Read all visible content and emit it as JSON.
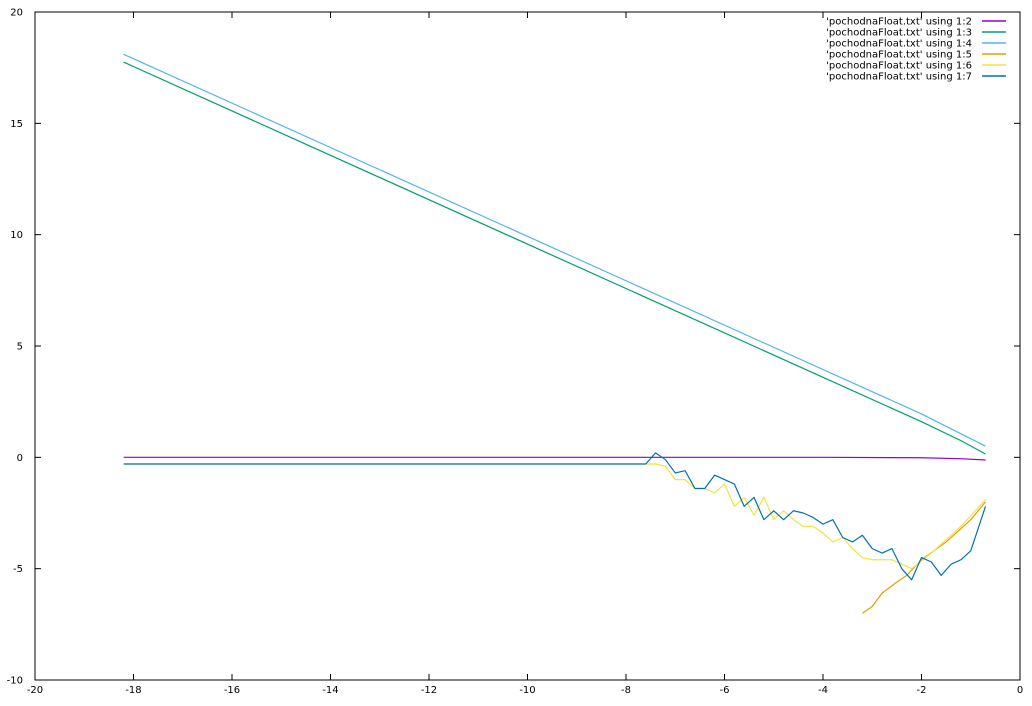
{
  "chart_data": {
    "type": "line",
    "title": "",
    "xlabel": "",
    "ylabel": "",
    "xlim": [
      -20,
      0
    ],
    "ylim": [
      -10,
      20
    ],
    "grid": false,
    "legend_position": "top-right",
    "x_ticks": [
      "-20",
      "-18",
      "-16",
      "-14",
      "-12",
      "-10",
      "-8",
      "-6",
      "-4",
      "-2",
      "0"
    ],
    "y_ticks": [
      "-10",
      "-5",
      "0",
      "5",
      "10",
      "15",
      "20"
    ],
    "series": [
      {
        "name": "'pochodnaFloat.txt' using 1:2",
        "color": "#9400d3",
        "points": [
          [
            -18.2,
            0.0
          ],
          [
            -10.0,
            0.0
          ],
          [
            -4.0,
            0.0
          ],
          [
            -2.0,
            -0.02
          ],
          [
            -1.2,
            -0.06
          ],
          [
            -0.7,
            -0.12
          ]
        ]
      },
      {
        "name": "'pochodnaFloat.txt' using 1:3",
        "color": "#009e73",
        "points": [
          [
            -18.2,
            17.75
          ],
          [
            -2.0,
            1.6
          ],
          [
            -1.2,
            0.75
          ],
          [
            -0.7,
            0.15
          ]
        ]
      },
      {
        "name": "'pochodnaFloat.txt' using 1:4",
        "color": "#56b4e9",
        "points": [
          [
            -18.2,
            18.1
          ],
          [
            -2.0,
            1.95
          ],
          [
            -0.7,
            0.5
          ]
        ]
      },
      {
        "name": "'pochodnaFloat.txt' using 1:5",
        "color": "#e69f00",
        "points": [
          [
            -3.2,
            -7.0
          ],
          [
            -3.0,
            -6.7
          ],
          [
            -2.8,
            -6.1
          ],
          [
            -2.5,
            -5.6
          ],
          [
            -2.3,
            -5.3
          ],
          [
            -2.0,
            -4.6
          ],
          [
            -1.5,
            -3.8
          ],
          [
            -1.0,
            -2.8
          ],
          [
            -0.7,
            -2.0
          ]
        ]
      },
      {
        "name": "'pochodnaFloat.txt' using 1:6",
        "color": "#f0e442",
        "points": [
          [
            -18.2,
            -0.3
          ],
          [
            -7.6,
            -0.3
          ],
          [
            -7.4,
            -0.3
          ],
          [
            -7.2,
            -0.4
          ],
          [
            -7.0,
            -1.0
          ],
          [
            -6.8,
            -1.0
          ],
          [
            -6.6,
            -1.4
          ],
          [
            -6.4,
            -1.4
          ],
          [
            -6.2,
            -1.6
          ],
          [
            -6.0,
            -1.2
          ],
          [
            -5.8,
            -2.2
          ],
          [
            -5.6,
            -1.8
          ],
          [
            -5.4,
            -2.6
          ],
          [
            -5.2,
            -1.8
          ],
          [
            -5.0,
            -2.8
          ],
          [
            -4.8,
            -2.4
          ],
          [
            -4.6,
            -2.8
          ],
          [
            -4.4,
            -3.1
          ],
          [
            -4.2,
            -3.1
          ],
          [
            -4.0,
            -3.4
          ],
          [
            -3.8,
            -3.8
          ],
          [
            -3.6,
            -3.6
          ],
          [
            -3.4,
            -4.1
          ],
          [
            -3.2,
            -4.5
          ],
          [
            -3.0,
            -4.6
          ],
          [
            -2.8,
            -4.6
          ],
          [
            -2.6,
            -4.6
          ],
          [
            -2.4,
            -4.8
          ],
          [
            -2.2,
            -5.0
          ],
          [
            -1.8,
            -4.3
          ],
          [
            -1.2,
            -3.1
          ],
          [
            -0.7,
            -1.9
          ]
        ]
      },
      {
        "name": "'pochodnaFloat.txt' using 1:7",
        "color": "#0072b2",
        "points": [
          [
            -18.2,
            -0.3
          ],
          [
            -7.6,
            -0.3
          ],
          [
            -7.4,
            0.2
          ],
          [
            -7.2,
            -0.1
          ],
          [
            -7.0,
            -0.7
          ],
          [
            -6.8,
            -0.6
          ],
          [
            -6.6,
            -1.4
          ],
          [
            -6.4,
            -1.4
          ],
          [
            -6.2,
            -0.8
          ],
          [
            -6.0,
            -1.0
          ],
          [
            -5.8,
            -1.2
          ],
          [
            -5.6,
            -2.2
          ],
          [
            -5.4,
            -1.8
          ],
          [
            -5.2,
            -2.8
          ],
          [
            -5.0,
            -2.4
          ],
          [
            -4.8,
            -2.8
          ],
          [
            -4.6,
            -2.4
          ],
          [
            -4.4,
            -2.5
          ],
          [
            -4.2,
            -2.7
          ],
          [
            -4.0,
            -3.0
          ],
          [
            -3.8,
            -2.8
          ],
          [
            -3.6,
            -3.6
          ],
          [
            -3.4,
            -3.8
          ],
          [
            -3.2,
            -3.5
          ],
          [
            -3.0,
            -4.1
          ],
          [
            -2.8,
            -4.3
          ],
          [
            -2.6,
            -4.1
          ],
          [
            -2.4,
            -5.0
          ],
          [
            -2.2,
            -5.5
          ],
          [
            -2.0,
            -4.5
          ],
          [
            -1.8,
            -4.7
          ],
          [
            -1.6,
            -5.3
          ],
          [
            -1.4,
            -4.8
          ],
          [
            -1.2,
            -4.6
          ],
          [
            -1.0,
            -4.2
          ],
          [
            -0.7,
            -2.2
          ]
        ]
      }
    ]
  }
}
